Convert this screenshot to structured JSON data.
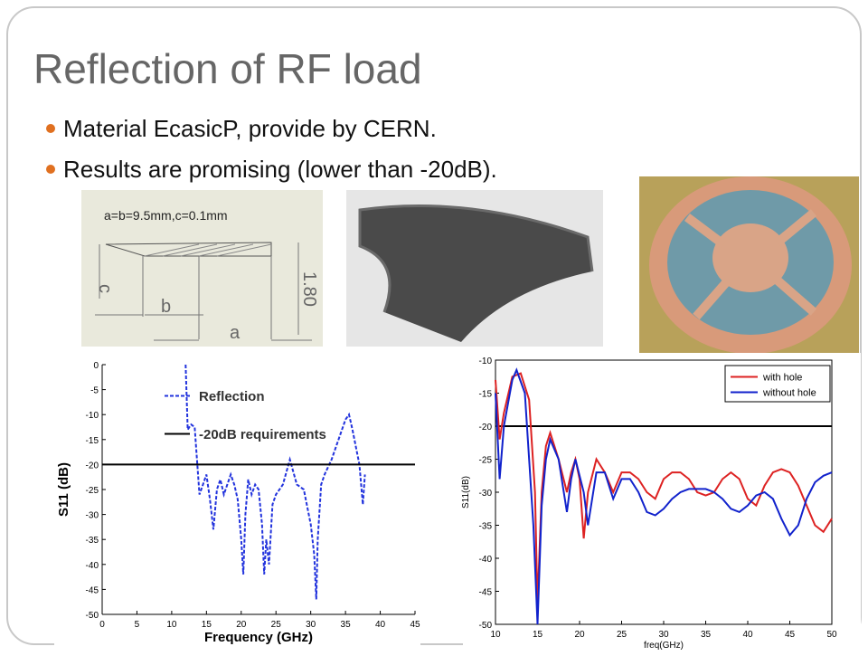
{
  "title": "Reflection of RF load",
  "bullets": [
    "Material EcasicP, provide by CERN.",
    "Results are promising (lower than -20dB)."
  ],
  "drawing": {
    "caption": "a=b=9.5mm,c=0.1mm",
    "labels": [
      "c",
      "b",
      "a",
      "1.80"
    ]
  },
  "chart_data": [
    {
      "type": "line",
      "xlabel": "Frequency (GHz)",
      "ylabel": "S11 (dB)",
      "xlim": [
        0,
        45
      ],
      "ylim": [
        -50,
        0
      ],
      "xticks": [
        0,
        5,
        10,
        15,
        20,
        25,
        30,
        35,
        40,
        45
      ],
      "yticks": [
        0,
        -5,
        -10,
        -15,
        -20,
        -25,
        -30,
        -35,
        -40,
        -45,
        -50
      ],
      "legend": "upper center",
      "series": [
        {
          "name": "Reflection",
          "color": "#2233dd",
          "dashed": true,
          "x": [
            12,
            12.3,
            12.8,
            13.3,
            14,
            14.5,
            15,
            15.5,
            16,
            16.5,
            17,
            17.5,
            18,
            18.5,
            19,
            19.5,
            20,
            20.3,
            20.6,
            21,
            21.5,
            22,
            22.5,
            23,
            23.3,
            23.6,
            24,
            24.5,
            25,
            26,
            27,
            28,
            29,
            30,
            30.5,
            30.8,
            31,
            31.5,
            32,
            33,
            34,
            35,
            35.5,
            36,
            37,
            37.5,
            37.8
          ],
          "values": [
            0,
            -13,
            -12,
            -12.5,
            -26,
            -24,
            -22,
            -27,
            -33,
            -25,
            -23,
            -26,
            -24,
            -22,
            -24,
            -27,
            -35,
            -42,
            -30,
            -23,
            -26,
            -24,
            -25,
            -32,
            -42,
            -35,
            -40,
            -28,
            -26,
            -24,
            -19,
            -24,
            -25,
            -32,
            -38,
            -47,
            -35,
            -24,
            -22,
            -19,
            -15,
            -11,
            -10,
            -13,
            -20,
            -28,
            -22
          ]
        },
        {
          "name": "-20dB requirements",
          "color": "#000000",
          "dashed": false,
          "x": [
            0,
            45
          ],
          "values": [
            -20,
            -20
          ]
        }
      ]
    },
    {
      "type": "line",
      "xlabel": "freq(GHz)",
      "ylabel": "S11(dB)",
      "xlim": [
        10,
        50
      ],
      "ylim": [
        -50,
        -10
      ],
      "xticks": [
        10,
        15,
        20,
        25,
        30,
        35,
        40,
        45,
        50
      ],
      "yticks": [
        -10,
        -15,
        -20,
        -25,
        -30,
        -35,
        -40,
        -45,
        -50
      ],
      "legend": "upper right",
      "ref_line": {
        "value": -20,
        "color": "#000000"
      },
      "series": [
        {
          "name": "with hole",
          "color": "#dd2222",
          "dashed": false,
          "x": [
            10,
            10.5,
            11,
            12,
            13,
            14,
            14.7,
            15,
            15.5,
            16,
            16.5,
            17.5,
            18.5,
            19,
            19.5,
            20,
            20.5,
            21,
            22,
            23,
            24,
            25,
            26,
            27,
            28,
            29,
            30,
            31,
            32,
            33,
            34,
            35,
            36,
            37,
            38,
            39,
            40,
            41,
            42,
            43,
            44,
            45,
            46,
            47,
            48,
            49,
            50
          ],
          "values": [
            -13,
            -22,
            -18,
            -12.5,
            -12,
            -16,
            -30,
            -47,
            -30,
            -23,
            -21,
            -25,
            -30,
            -27,
            -25,
            -28,
            -37,
            -30,
            -25,
            -27,
            -30,
            -27,
            -27,
            -28,
            -30,
            -31,
            -28,
            -27,
            -27,
            -28,
            -30,
            -30.5,
            -30,
            -28,
            -27,
            -28,
            -31,
            -32,
            -29,
            -27,
            -26.5,
            -27,
            -29,
            -32,
            -35,
            -36,
            -34
          ]
        },
        {
          "name": "without hole",
          "color": "#1122cc",
          "dashed": false,
          "x": [
            10,
            10.5,
            11,
            12,
            12.5,
            13.5,
            14.5,
            15,
            15.5,
            16,
            16.5,
            17.5,
            18.5,
            19,
            19.5,
            20.5,
            21,
            22,
            23,
            24,
            25,
            26,
            27,
            28,
            29,
            30,
            31,
            32,
            33,
            34,
            35,
            36,
            37,
            38,
            39,
            40,
            41,
            42,
            43,
            44,
            45,
            46,
            47,
            48,
            49,
            50
          ],
          "values": [
            -15,
            -28,
            -20,
            -13,
            -11.5,
            -15,
            -35,
            -50,
            -32,
            -25,
            -22,
            -25,
            -33,
            -28,
            -25,
            -30,
            -35,
            -27,
            -27,
            -31,
            -28,
            -28,
            -30,
            -33,
            -33.5,
            -32.5,
            -31,
            -30,
            -29.5,
            -29.5,
            -29.5,
            -30,
            -31,
            -32.5,
            -33,
            -32,
            -30.5,
            -30,
            -31,
            -34,
            -36.5,
            -35,
            -31,
            -28.5,
            -27.5,
            -27
          ]
        }
      ]
    }
  ]
}
